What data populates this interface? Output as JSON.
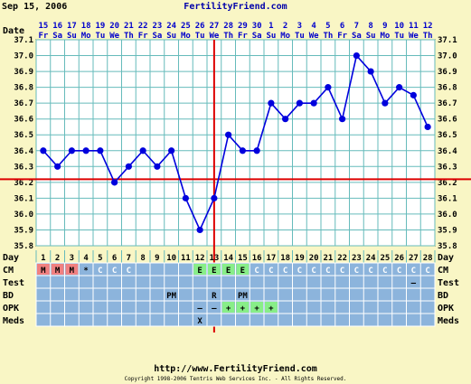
{
  "header": {
    "print_date": "Sep 15, 2006",
    "site": "FertilityFriend.com"
  },
  "footer": {
    "url": "http://www.FertilityFriend.com",
    "copyright": "Copyright 1998-2006 Tentris Web Services Inc. - All Rights Reserved."
  },
  "chart_data": {
    "type": "line",
    "title": "",
    "xlabel": "Day",
    "ylabel": "",
    "row_labels": {
      "date": "Date",
      "day": "Day",
      "cm": "CM",
      "test": "Test",
      "bd": "BD",
      "opk": "OPK",
      "meds": "Meds"
    },
    "dates": [
      "15",
      "16",
      "17",
      "18",
      "19",
      "20",
      "21",
      "22",
      "23",
      "24",
      "25",
      "26",
      "27",
      "28",
      "29",
      "30",
      "1",
      "2",
      "3",
      "4",
      "5",
      "6",
      "7",
      "8",
      "9",
      "10",
      "11",
      "12"
    ],
    "weekdays": [
      "Fr",
      "Sa",
      "Su",
      "Mo",
      "Tu",
      "We",
      "Th",
      "Fr",
      "Sa",
      "Su",
      "Mo",
      "Tu",
      "We",
      "Th",
      "Fr",
      "Sa",
      "Su",
      "Mo",
      "Tu",
      "We",
      "Th",
      "Fr",
      "Sa",
      "Su",
      "Mo",
      "Tu",
      "We",
      "Th"
    ],
    "days": [
      1,
      2,
      3,
      4,
      5,
      6,
      7,
      8,
      9,
      10,
      11,
      12,
      13,
      14,
      15,
      16,
      17,
      18,
      19,
      20,
      21,
      22,
      23,
      24,
      25,
      26,
      27,
      28
    ],
    "temperatures": [
      36.4,
      36.3,
      36.4,
      36.4,
      36.4,
      36.2,
      36.3,
      36.4,
      36.3,
      36.4,
      36.1,
      35.9,
      36.1,
      36.5,
      36.4,
      36.4,
      36.7,
      36.6,
      36.7,
      36.7,
      36.8,
      36.6,
      37.0,
      36.9,
      36.7,
      36.8,
      36.75,
      36.55
    ],
    "ylim": [
      35.8,
      37.1
    ],
    "yticks": [
      "35.8",
      "35.9",
      "36.0",
      "36.1",
      "36.2",
      "36.3",
      "36.4",
      "36.5",
      "36.6",
      "36.7",
      "36.8",
      "36.9",
      "37.0",
      "37.1"
    ],
    "coverline": 36.22,
    "ovulation_day": 13,
    "cm": [
      "M",
      "M",
      "M",
      "*",
      "C",
      "C",
      "C",
      "",
      "",
      "",
      "",
      "E",
      "E",
      "E",
      "E",
      "C",
      "C",
      "C",
      "C",
      "C",
      "C",
      "C",
      "C",
      "C",
      "C",
      "C",
      "C",
      "C"
    ],
    "test": [
      "",
      "",
      "",
      "",
      "",
      "",
      "",
      "",
      "",
      "",
      "",
      "",
      "",
      "",
      "",
      "",
      "",
      "",
      "",
      "",
      "",
      "",
      "",
      "",
      "",
      "",
      "–",
      ""
    ],
    "bd": [
      "",
      "",
      "",
      "",
      "",
      "",
      "",
      "",
      "",
      "PM",
      "",
      "",
      "R",
      "",
      "PM",
      "",
      "",
      "",
      "",
      "",
      "",
      "",
      "",
      "",
      "",
      "",
      "",
      ""
    ],
    "opk": [
      "",
      "",
      "",
      "",
      "",
      "",
      "",
      "",
      "",
      "",
      "",
      "–",
      "–",
      "+",
      "+",
      "+",
      "+",
      "",
      "",
      "",
      "",
      "",
      "",
      "",
      "",
      "",
      "",
      ""
    ],
    "meds": [
      "",
      "",
      "",
      "",
      "",
      "",
      "",
      "",
      "",
      "",
      "",
      "X",
      "",
      "",
      "",
      "",
      "",
      "",
      "",
      "",
      "",
      "",
      "",
      "",
      "",
      "",
      "",
      ""
    ],
    "grid": true,
    "colors": {
      "background": "#f9f6c5",
      "plot_bg": "#ffffff",
      "grid": "#66bbbb",
      "line": "#0000dd",
      "coverline": "#dd0000",
      "row_bg": "#8cb4dc",
      "menses": "#f08080",
      "egg_white": "#88ee88",
      "opk_positive": "#88ee88",
      "date_text": "#0000cc"
    }
  }
}
